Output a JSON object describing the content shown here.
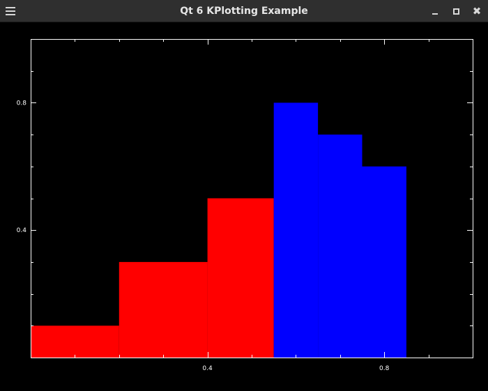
{
  "window": {
    "title": "Qt 6 KPlotting Example",
    "close_glyph": "✖"
  },
  "icons": {
    "menu": "hamburger-menu-icon",
    "minimize": "minimize-icon",
    "maximize": "maximize-icon",
    "close": "close-icon"
  },
  "colors": {
    "background": "#000000",
    "axes": "#ffffff",
    "series_red": "#ff0000",
    "series_blue": "#0000ff"
  },
  "chart_data": {
    "type": "bar",
    "xlim": [
      0,
      1
    ],
    "ylim": [
      0,
      1
    ],
    "x_ticks": [
      0.4,
      0.8
    ],
    "y_ticks": [
      0.4,
      0.8
    ],
    "x_minor_step": 0.1,
    "y_minor_step": 0.1,
    "grid": false,
    "series": [
      {
        "color": "#ff0000",
        "bars": [
          {
            "x0": 0.0,
            "x1": 0.2,
            "value": 0.1
          },
          {
            "x0": 0.2,
            "x1": 0.4,
            "value": 0.3
          },
          {
            "x0": 0.4,
            "x1": 0.55,
            "value": 0.5
          }
        ]
      },
      {
        "color": "#0000ff",
        "bars": [
          {
            "x0": 0.55,
            "x1": 0.65,
            "value": 0.8
          },
          {
            "x0": 0.65,
            "x1": 0.75,
            "value": 0.7
          },
          {
            "x0": 0.75,
            "x1": 0.85,
            "value": 0.6
          }
        ]
      }
    ]
  }
}
